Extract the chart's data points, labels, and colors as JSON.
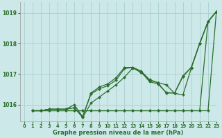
{
  "xlabel": "Graphe pression niveau de la mer (hPa)",
  "xlim": [
    -0.5,
    23
  ],
  "ylim": [
    1015.45,
    1019.35
  ],
  "yticks": [
    1016,
    1017,
    1018,
    1019
  ],
  "xticks": [
    0,
    1,
    2,
    3,
    4,
    5,
    6,
    7,
    8,
    9,
    10,
    11,
    12,
    13,
    14,
    15,
    16,
    17,
    18,
    19,
    20,
    21,
    22,
    23
  ],
  "bg_color": "#cce8e8",
  "grid_color": "#aacfcf",
  "line_color": "#2d6e2d",
  "series": [
    [
      1015.8,
      1015.8,
      1015.85,
      1015.85,
      1015.85,
      1015.9,
      1015.58,
      1016.05,
      1016.25,
      1016.45,
      1016.65,
      1016.9,
      1017.2,
      1017.05,
      1016.8,
      1016.72,
      1016.65,
      1016.37,
      1016.32,
      1017.2,
      1018.0,
      1018.72,
      1019.05
    ],
    [
      1015.8,
      1015.8,
      1015.85,
      1015.85,
      1015.85,
      1016.0,
      1015.6,
      1016.38,
      1016.58,
      1016.68,
      1016.88,
      1017.22,
      1017.22,
      1017.1,
      1016.82,
      1016.72,
      1016.38,
      1016.38,
      1016.95,
      1017.22,
      1018.0,
      1018.72,
      1019.05
    ],
    [
      1015.8,
      1015.8,
      1015.85,
      1015.85,
      1015.85,
      1015.9,
      1015.6,
      1016.35,
      1016.52,
      1016.62,
      1016.8,
      1017.18,
      1017.22,
      1017.08,
      1016.75,
      1016.68,
      1016.4,
      1016.38,
      1016.92,
      1017.22,
      1018.0,
      1018.72,
      1019.05
    ],
    [
      1015.8,
      1015.8,
      1015.8,
      1015.8,
      1015.8,
      1015.8,
      1015.8,
      1015.8,
      1015.8,
      1015.8,
      1015.8,
      1015.8,
      1015.8,
      1015.8,
      1015.8,
      1015.8,
      1015.8,
      1015.8,
      1015.8,
      1015.8,
      1015.8,
      1015.8,
      1019.05
    ],
    [
      1015.8,
      1015.8,
      1015.8,
      1015.8,
      1015.8,
      1015.8,
      1015.8,
      1015.8,
      1015.8,
      1015.8,
      1015.8,
      1015.8,
      1015.8,
      1015.8,
      1015.8,
      1015.8,
      1015.8,
      1015.8,
      1015.8,
      1015.8,
      1015.8,
      1018.72,
      1019.05
    ]
  ],
  "marker": "D",
  "markersize": 2.0,
  "linewidth": 0.9
}
